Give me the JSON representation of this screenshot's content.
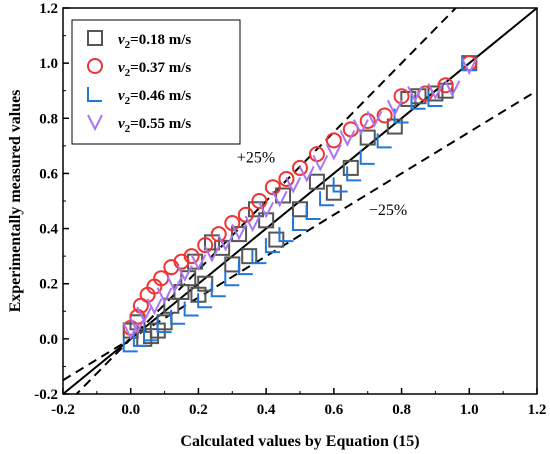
{
  "chart_data": {
    "type": "scatter",
    "title": "",
    "xlabel": "Calculated values by Equation (15)",
    "ylabel": "Experimentally measured values",
    "xlim": [
      -0.2,
      1.2
    ],
    "ylim": [
      -0.2,
      1.2
    ],
    "x_ticks": [
      "-0.2",
      "0.0",
      "0.2",
      "0.4",
      "0.6",
      "0.8",
      "1.0",
      "1.2"
    ],
    "y_ticks": [
      "-0.2",
      "0.0",
      "0.2",
      "0.4",
      "0.6",
      "0.8",
      "1.0",
      "1.2"
    ],
    "legend_position": "top-left",
    "reference_lines": [
      {
        "slope": 1.0,
        "style": "solid"
      },
      {
        "slope": 1.25,
        "style": "dashed"
      },
      {
        "slope": 0.75,
        "style": "dashed"
      }
    ],
    "annotations": [
      {
        "text": "+25%",
        "x": 0.37,
        "y": 0.64
      },
      {
        "text": "−25%",
        "x": 0.76,
        "y": 0.45
      }
    ],
    "series": [
      {
        "name_var": "v",
        "name_sub": "2",
        "name_rest": "=0.18 m/s",
        "marker": "square",
        "color": "#555555",
        "points": [
          [
            0.0,
            0.03
          ],
          [
            0.02,
            0.06
          ],
          [
            0.04,
            0.0
          ],
          [
            0.06,
            0.01
          ],
          [
            0.08,
            0.03
          ],
          [
            0.1,
            0.06
          ],
          [
            0.12,
            0.12
          ],
          [
            0.15,
            0.17
          ],
          [
            0.17,
            0.22
          ],
          [
            0.19,
            0.28
          ],
          [
            0.2,
            0.16
          ],
          [
            0.22,
            0.2
          ],
          [
            0.24,
            0.35
          ],
          [
            0.27,
            0.33
          ],
          [
            0.3,
            0.27
          ],
          [
            0.32,
            0.38
          ],
          [
            0.35,
            0.3
          ],
          [
            0.37,
            0.47
          ],
          [
            0.4,
            0.43
          ],
          [
            0.43,
            0.36
          ],
          [
            0.45,
            0.52
          ],
          [
            0.5,
            0.47
          ],
          [
            0.55,
            0.57
          ],
          [
            0.6,
            0.53
          ],
          [
            0.65,
            0.62
          ],
          [
            0.7,
            0.73
          ],
          [
            0.78,
            0.77
          ],
          [
            0.82,
            0.87
          ],
          [
            0.85,
            0.88
          ],
          [
            0.9,
            0.89
          ],
          [
            0.93,
            0.9
          ],
          [
            1.0,
            1.0
          ]
        ]
      },
      {
        "name_var": "v",
        "name_sub": "2",
        "name_rest": "=0.37 m/s",
        "marker": "circle",
        "color": "#ee3333",
        "points": [
          [
            0.0,
            0.04
          ],
          [
            0.02,
            0.08
          ],
          [
            0.03,
            0.12
          ],
          [
            0.05,
            0.16
          ],
          [
            0.07,
            0.19
          ],
          [
            0.09,
            0.22
          ],
          [
            0.12,
            0.26
          ],
          [
            0.15,
            0.28
          ],
          [
            0.18,
            0.3
          ],
          [
            0.22,
            0.34
          ],
          [
            0.26,
            0.38
          ],
          [
            0.3,
            0.42
          ],
          [
            0.34,
            0.45
          ],
          [
            0.38,
            0.5
          ],
          [
            0.42,
            0.55
          ],
          [
            0.46,
            0.58
          ],
          [
            0.5,
            0.62
          ],
          [
            0.55,
            0.67
          ],
          [
            0.6,
            0.72
          ],
          [
            0.65,
            0.76
          ],
          [
            0.7,
            0.79
          ],
          [
            0.75,
            0.81
          ],
          [
            0.8,
            0.88
          ],
          [
            0.87,
            0.89
          ],
          [
            0.93,
            0.92
          ],
          [
            1.0,
            1.0
          ]
        ]
      },
      {
        "name_var": "v",
        "name_sub": "2",
        "name_rest": "=0.46 m/s",
        "marker": "triangle",
        "color": "#2277dd",
        "points": [
          [
            0.0,
            -0.02
          ],
          [
            0.03,
            0.0
          ],
          [
            0.06,
            0.02
          ],
          [
            0.1,
            0.05
          ],
          [
            0.14,
            0.08
          ],
          [
            0.18,
            0.11
          ],
          [
            0.22,
            0.14
          ],
          [
            0.26,
            0.18
          ],
          [
            0.3,
            0.22
          ],
          [
            0.34,
            0.26
          ],
          [
            0.38,
            0.3
          ],
          [
            0.42,
            0.34
          ],
          [
            0.46,
            0.38
          ],
          [
            0.5,
            0.42
          ],
          [
            0.54,
            0.46
          ],
          [
            0.58,
            0.51
          ],
          [
            0.62,
            0.56
          ],
          [
            0.66,
            0.6
          ],
          [
            0.7,
            0.66
          ],
          [
            0.75,
            0.72
          ],
          [
            0.8,
            0.81
          ],
          [
            0.85,
            0.86
          ],
          [
            0.9,
            0.87
          ],
          [
            1.0,
            1.0
          ]
        ]
      },
      {
        "name_var": "v",
        "name_sub": "2",
        "name_rest": "=0.55 m/s",
        "marker": "v-shape",
        "color": "#aa77ee",
        "points": [
          [
            0.0,
            0.03
          ],
          [
            0.02,
            0.05
          ],
          [
            0.04,
            0.09
          ],
          [
            0.07,
            0.12
          ],
          [
            0.1,
            0.16
          ],
          [
            0.13,
            0.2
          ],
          [
            0.16,
            0.24
          ],
          [
            0.2,
            0.28
          ],
          [
            0.24,
            0.31
          ],
          [
            0.28,
            0.35
          ],
          [
            0.32,
            0.39
          ],
          [
            0.36,
            0.42
          ],
          [
            0.4,
            0.47
          ],
          [
            0.44,
            0.51
          ],
          [
            0.48,
            0.56
          ],
          [
            0.52,
            0.6
          ],
          [
            0.56,
            0.64
          ],
          [
            0.6,
            0.68
          ],
          [
            0.64,
            0.73
          ],
          [
            0.68,
            0.77
          ],
          [
            0.72,
            0.8
          ],
          [
            0.78,
            0.84
          ],
          [
            0.84,
            0.89
          ],
          [
            0.9,
            0.9
          ],
          [
            0.95,
            0.91
          ],
          [
            1.0,
            0.99
          ]
        ]
      }
    ]
  }
}
